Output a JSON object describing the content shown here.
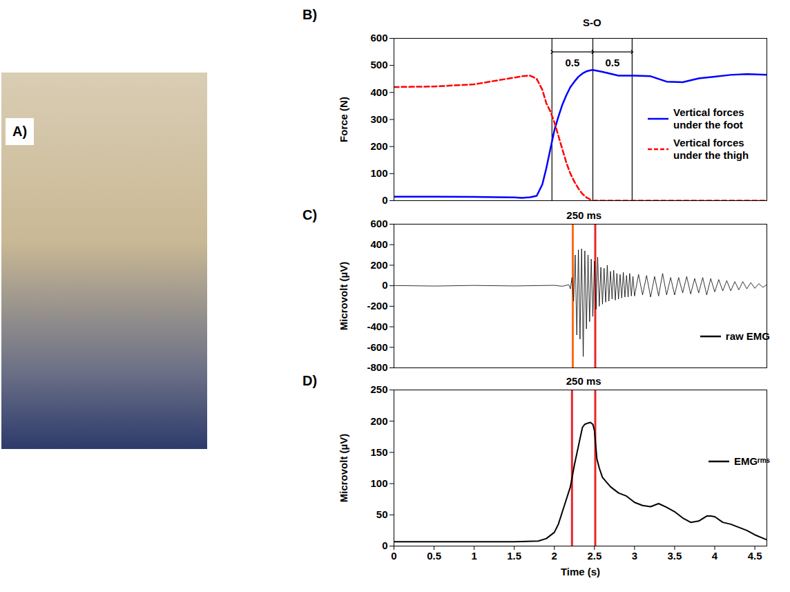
{
  "photo": {
    "panel": "A)"
  },
  "chart_data": [
    {
      "panel": "B)",
      "type": "line",
      "y_label": "Force (N)",
      "x": [
        0,
        0.5,
        1.0,
        1.3,
        1.5,
        1.6,
        1.7,
        1.78,
        1.85,
        1.9,
        1.95,
        2.0,
        2.05,
        2.1,
        2.15,
        2.2,
        2.25,
        2.3,
        2.35,
        2.4,
        2.45,
        2.48,
        2.5,
        2.6,
        2.8,
        3.0,
        3.2,
        3.4,
        3.6,
        3.8,
        4.0,
        4.2,
        4.4,
        4.65
      ],
      "series": [
        {
          "name": "Vertical forces under the foot",
          "color": "#0000ff",
          "line_style": "solid",
          "values": [
            15,
            15,
            14,
            13,
            12,
            10,
            13,
            18,
            60,
            120,
            190,
            260,
            310,
            355,
            390,
            420,
            440,
            458,
            470,
            478,
            482,
            483,
            482,
            476,
            462,
            462,
            460,
            440,
            438,
            452,
            458,
            465,
            468,
            465
          ]
        },
        {
          "name": "Vertical forces under the thigh",
          "color": "#ff0000",
          "line_style": "dashed",
          "values": [
            420,
            422,
            430,
            445,
            455,
            460,
            462,
            450,
            410,
            360,
            330,
            290,
            240,
            190,
            140,
            100,
            70,
            45,
            25,
            12,
            4,
            0,
            0,
            0,
            0,
            0,
            0,
            0,
            0,
            0,
            0,
            0,
            0,
            0
          ]
        }
      ],
      "xlim": [
        0,
        4.65
      ],
      "ylim": [
        0,
        600
      ],
      "yticks": [
        0,
        100,
        200,
        300,
        400,
        500,
        600
      ],
      "tick_labels": "y",
      "legend": "right",
      "vlines": {
        "x": [
          1.97,
          2.48,
          2.97
        ],
        "colors": [
          "#000000",
          "#000000",
          "#000000"
        ],
        "label": "S-O"
      },
      "spans": [
        {
          "x1": 1.97,
          "x2": 2.48,
          "y": 550,
          "label": "0.5"
        },
        {
          "x1": 2.48,
          "x2": 2.97,
          "y": 550,
          "label": "0.5"
        }
      ]
    },
    {
      "panel": "C)",
      "type": "line",
      "y_label": "Microvolt (µV)",
      "x": [
        0,
        0.5,
        1.0,
        1.5,
        2.0,
        2.1,
        2.18,
        2.2,
        2.22,
        2.24,
        2.26,
        2.28,
        2.3,
        2.32,
        2.34,
        2.36,
        2.38,
        2.4,
        2.42,
        2.44,
        2.46,
        2.48,
        2.5,
        2.52,
        2.54,
        2.56,
        2.58,
        2.6,
        2.62,
        2.64,
        2.66,
        2.68,
        2.7,
        2.72,
        2.74,
        2.76,
        2.78,
        2.8,
        2.82,
        2.84,
        2.86,
        2.88,
        2.9,
        2.92,
        2.94,
        2.96,
        2.98,
        3.0,
        3.05,
        3.1,
        3.15,
        3.2,
        3.25,
        3.3,
        3.35,
        3.4,
        3.45,
        3.5,
        3.55,
        3.6,
        3.65,
        3.7,
        3.75,
        3.8,
        3.85,
        3.9,
        3.95,
        4.0,
        4.05,
        4.1,
        4.15,
        4.2,
        4.25,
        4.3,
        4.35,
        4.4,
        4.45,
        4.5,
        4.55,
        4.6,
        4.65
      ],
      "series": [
        {
          "name": "raw EMG",
          "color": "#000000",
          "line_style": "solid",
          "values": [
            2,
            -3,
            3,
            -2,
            4,
            -5,
            10,
            -30,
            80,
            -150,
            300,
            -480,
            350,
            -520,
            360,
            -690,
            340,
            -420,
            300,
            -350,
            260,
            -300,
            240,
            -230,
            280,
            -200,
            180,
            -180,
            170,
            -160,
            200,
            -150,
            140,
            -130,
            150,
            -140,
            120,
            -130,
            110,
            -120,
            130,
            -110,
            100,
            -110,
            120,
            -100,
            90,
            -100,
            110,
            -90,
            100,
            -110,
            90,
            -100,
            120,
            -90,
            80,
            -90,
            80,
            -70,
            90,
            -80,
            70,
            -70,
            80,
            -90,
            70,
            -60,
            60,
            -50,
            50,
            -50,
            40,
            -40,
            40,
            -30,
            30,
            -25,
            20,
            -15,
            10
          ]
        }
      ],
      "xlim": [
        0,
        4.65
      ],
      "ylim": [
        -800,
        600
      ],
      "yticks": [
        -800,
        -600,
        -400,
        -200,
        0,
        200,
        400,
        600
      ],
      "tick_labels": "y",
      "legend": "lower right",
      "vlines": {
        "x": [
          2.23,
          2.51
        ],
        "colors": [
          "#ff6a13",
          "#e8262b"
        ],
        "label": "250 ms"
      }
    },
    {
      "panel": "D)",
      "type": "line",
      "y_label": "Microvolt (µV)",
      "x_label": "Time (s)",
      "x": [
        0,
        0.5,
        1.0,
        1.5,
        1.8,
        1.9,
        2.0,
        2.05,
        2.1,
        2.15,
        2.2,
        2.25,
        2.3,
        2.35,
        2.38,
        2.42,
        2.45,
        2.48,
        2.5,
        2.53,
        2.56,
        2.6,
        2.7,
        2.8,
        2.9,
        3.0,
        3.1,
        3.2,
        3.3,
        3.4,
        3.5,
        3.6,
        3.7,
        3.8,
        3.9,
        3.95,
        4.0,
        4.1,
        4.2,
        4.3,
        4.4,
        4.5,
        4.65
      ],
      "series": [
        {
          "name": "EMGʳᵐˢ",
          "color": "#000000",
          "line_style": "solid",
          "values": [
            7,
            7,
            7,
            7,
            8,
            12,
            22,
            35,
            55,
            75,
            95,
            130,
            160,
            190,
            195,
            197,
            198,
            195,
            185,
            140,
            125,
            110,
            95,
            85,
            80,
            70,
            65,
            63,
            68,
            62,
            55,
            45,
            38,
            40,
            48,
            48,
            47,
            38,
            35,
            30,
            25,
            18,
            10
          ]
        }
      ],
      "xlim": [
        0,
        4.65
      ],
      "xticks": [
        0,
        0.5,
        1,
        1.5,
        2,
        2.5,
        3,
        3.5,
        4,
        4.5
      ],
      "ylim": [
        0,
        250
      ],
      "yticks": [
        0,
        50,
        100,
        150,
        200,
        250
      ],
      "legend": "right",
      "vlines": {
        "x": [
          2.22,
          2.51
        ],
        "colors": [
          "#e8262b",
          "#e8262b"
        ],
        "label": "250 ms"
      }
    }
  ]
}
